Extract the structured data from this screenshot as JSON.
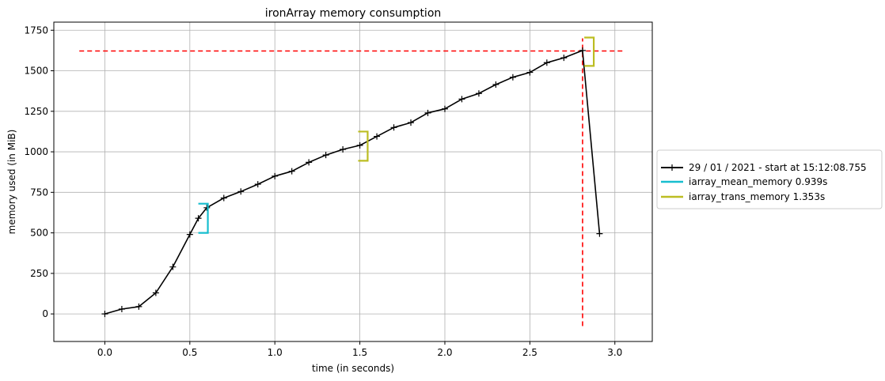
{
  "chart_data": {
    "type": "line",
    "title": "ironArray memory consumption",
    "xlabel": "time (in seconds)",
    "ylabel": "memory used (in MiB)",
    "xlim": [
      -0.3,
      3.22
    ],
    "ylim": [
      -170,
      1800
    ],
    "xticks": [
      0.0,
      0.5,
      1.0,
      1.5,
      2.0,
      2.5,
      3.0
    ],
    "xtick_labels": [
      "0.0",
      "0.5",
      "1.0",
      "1.5",
      "2.0",
      "2.5",
      "3.0"
    ],
    "yticks": [
      0,
      250,
      500,
      750,
      1000,
      1250,
      1500,
      1750
    ],
    "ytick_labels": [
      "0",
      "250",
      "500",
      "750",
      "1000",
      "1250",
      "1500",
      "1750"
    ],
    "grid": true,
    "legend_position": "outside right",
    "series": [
      {
        "name": "29 / 01 / 2021 - start at 15:12:08.755",
        "color": "#000000",
        "marker": "+",
        "x": [
          0.0,
          0.1,
          0.2,
          0.3,
          0.4,
          0.5,
          0.55,
          0.6,
          0.7,
          0.8,
          0.9,
          1.0,
          1.1,
          1.2,
          1.3,
          1.4,
          1.5,
          1.6,
          1.7,
          1.8,
          1.9,
          2.0,
          2.1,
          2.2,
          2.3,
          2.4,
          2.5,
          2.6,
          2.7,
          2.81,
          2.91
        ],
        "y": [
          0,
          30,
          45,
          130,
          290,
          490,
          590,
          655,
          715,
          755,
          800,
          850,
          880,
          935,
          980,
          1015,
          1040,
          1095,
          1150,
          1180,
          1240,
          1265,
          1325,
          1360,
          1415,
          1460,
          1490,
          1550,
          1580,
          1625,
          495
        ]
      }
    ],
    "brackets": [
      {
        "name": "iarray_mean_memory 0.939s",
        "color": "#17becf",
        "x_start": 0.55,
        "y_low": 500,
        "y_high": 680
      },
      {
        "name": "iarray_trans_memory 1.353s",
        "color": "#bcbd22",
        "x_start": 1.49,
        "y_low": 945,
        "y_high": 1125
      },
      {
        "name": "iarray_trans_memory 1.353s",
        "color": "#bcbd22",
        "x_start": 2.82,
        "y_low": 1530,
        "y_high": 1705
      }
    ],
    "reference_lines": {
      "color": "#ff0000",
      "horizontal_y": 1622,
      "horizontal_x": [
        -0.15,
        3.05
      ],
      "vertical_x": 2.81,
      "vertical_y": [
        -75,
        1700
      ]
    }
  }
}
